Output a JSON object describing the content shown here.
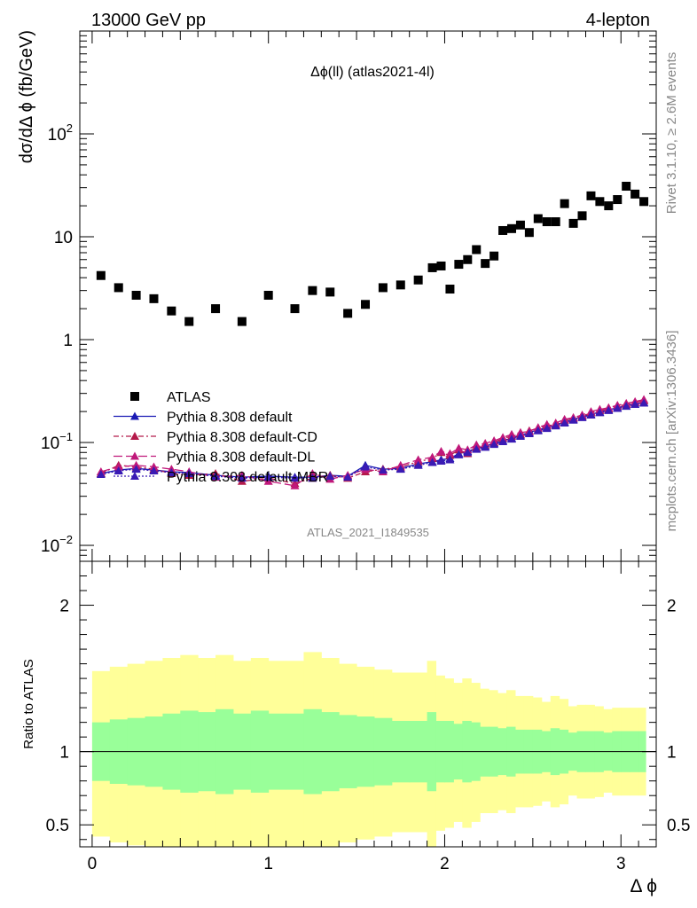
{
  "header": {
    "energy_label": "13000 GeV pp",
    "process_label": "4-lepton"
  },
  "side": {
    "rivet_label": "Rivet 3.1.10, ≥ 2.6M events",
    "mcplots_label": "mcplots.cern.ch [arXiv:1306.3436]"
  },
  "chart_data": [
    {
      "type": "scatter",
      "title": "Δϕ(ll) (atlas2021-4l)",
      "watermark": "ATLAS_2021_I1849535",
      "ylabel": "dσ/dΔ ϕ (fb/GeV)",
      "xlabel": "Δ ϕ",
      "yscale": "log",
      "xlim": [
        -0.07,
        3.2
      ],
      "ylim": [
        0.007,
        1000
      ],
      "x_ticks": [
        "0",
        "1",
        "2",
        "3"
      ],
      "y_ticks": [
        {
          "value": 0.01,
          "label": "10",
          "exp": "−2"
        },
        {
          "value": 0.1,
          "label": "10",
          "exp": "−1"
        },
        {
          "value": 1,
          "label": "1",
          "exp": ""
        },
        {
          "value": 10,
          "label": "10",
          "exp": ""
        },
        {
          "value": 100,
          "label": "10",
          "exp": "2"
        }
      ],
      "legend_position": "center-left",
      "colors": {
        "ATLAS": "#000000",
        "Pythia 8.308 default": "#1a1ab4",
        "Pythia 8.308 default-CD": "#b41a4a",
        "Pythia 8.308 default-DL": "#c0187a",
        "Pythia 8.308 default-MBR": "#3a1ab4"
      },
      "x": [
        0.05,
        0.15,
        0.25,
        0.35,
        0.45,
        0.55,
        0.7,
        0.85,
        1.0,
        1.15,
        1.25,
        1.35,
        1.45,
        1.55,
        1.65,
        1.75,
        1.85,
        1.93,
        1.98,
        2.03,
        2.08,
        2.13,
        2.18,
        2.23,
        2.28,
        2.33,
        2.38,
        2.43,
        2.48,
        2.53,
        2.58,
        2.63,
        2.68,
        2.73,
        2.78,
        2.83,
        2.88,
        2.93,
        2.98,
        3.03,
        3.08,
        3.13
      ],
      "series": [
        {
          "name": "ATLAS",
          "marker": "square",
          "values": [
            4.2,
            3.2,
            2.7,
            2.5,
            1.9,
            1.5,
            2.0,
            1.5,
            2.7,
            2.0,
            3.0,
            2.9,
            1.8,
            2.2,
            3.2,
            3.4,
            3.8,
            5.0,
            5.2,
            3.1,
            5.4,
            6.0,
            7.5,
            5.5,
            6.5,
            11.5,
            12,
            13,
            11,
            15,
            14,
            14,
            21,
            13.5,
            16,
            25,
            22,
            20,
            23,
            31,
            26,
            22
          ]
        },
        {
          "name": "Pythia 8.308 default",
          "marker": "triangle",
          "values": [
            0.05,
            0.054,
            0.056,
            0.054,
            0.052,
            0.051,
            0.048,
            0.046,
            0.047,
            0.046,
            0.046,
            0.048,
            0.047,
            0.06,
            0.055,
            0.056,
            0.062,
            0.065,
            0.068,
            0.07,
            0.078,
            0.082,
            0.088,
            0.092,
            0.098,
            0.105,
            0.11,
            0.118,
            0.125,
            0.133,
            0.14,
            0.148,
            0.158,
            0.168,
            0.178,
            0.188,
            0.198,
            0.208,
            0.218,
            0.228,
            0.238,
            0.245
          ]
        },
        {
          "name": "Pythia 8.308 default-CD",
          "marker": "triangle",
          "values": [
            0.05,
            0.06,
            0.058,
            0.055,
            0.05,
            0.048,
            0.05,
            0.042,
            0.045,
            0.04,
            0.045,
            0.048,
            0.045,
            0.052,
            0.055,
            0.058,
            0.065,
            0.07,
            0.08,
            0.075,
            0.085,
            0.078,
            0.09,
            0.095,
            0.1,
            0.11,
            0.115,
            0.12,
            0.13,
            0.138,
            0.145,
            0.15,
            0.165,
            0.172,
            0.18,
            0.195,
            0.205,
            0.212,
            0.225,
            0.235,
            0.245,
            0.255
          ]
        },
        {
          "name": "Pythia 8.308 default-DL",
          "marker": "triangle",
          "values": [
            0.052,
            0.058,
            0.06,
            0.058,
            0.055,
            0.052,
            0.046,
            0.048,
            0.042,
            0.038,
            0.05,
            0.044,
            0.048,
            0.055,
            0.052,
            0.06,
            0.068,
            0.072,
            0.082,
            0.078,
            0.088,
            0.085,
            0.095,
            0.098,
            0.104,
            0.112,
            0.12,
            0.125,
            0.128,
            0.14,
            0.15,
            0.155,
            0.168,
            0.175,
            0.185,
            0.2,
            0.21,
            0.218,
            0.23,
            0.24,
            0.25,
            0.262
          ]
        },
        {
          "name": "Pythia 8.308 default-MBR",
          "marker": "triangle",
          "values": [
            0.049,
            0.053,
            0.055,
            0.053,
            0.051,
            0.05,
            0.047,
            0.045,
            0.046,
            0.045,
            0.045,
            0.047,
            0.046,
            0.058,
            0.054,
            0.055,
            0.06,
            0.064,
            0.066,
            0.068,
            0.076,
            0.08,
            0.086,
            0.09,
            0.096,
            0.102,
            0.108,
            0.115,
            0.122,
            0.13,
            0.137,
            0.145,
            0.155,
            0.165,
            0.175,
            0.185,
            0.195,
            0.205,
            0.215,
            0.225,
            0.235,
            0.242
          ]
        }
      ]
    },
    {
      "type": "area",
      "ylabel": "Ratio to ATLAS",
      "ylim": [
        0.35,
        2.3
      ],
      "y_ticks": [
        {
          "value": 0.5,
          "label": "0.5"
        },
        {
          "value": 1,
          "label": "1"
        },
        {
          "value": 2,
          "label": "2"
        }
      ],
      "reference_line": 1,
      "colors": {
        "inner_band": "#99ff99",
        "outer_band": "#ffff99"
      },
      "bin_edges": [
        0,
        0.1,
        0.2,
        0.3,
        0.4,
        0.5,
        0.6,
        0.7,
        0.8,
        0.9,
        1.0,
        1.1,
        1.2,
        1.3,
        1.4,
        1.5,
        1.6,
        1.7,
        1.8,
        1.9,
        1.95,
        2.0,
        2.05,
        2.1,
        2.15,
        2.2,
        2.25,
        2.3,
        2.35,
        2.4,
        2.45,
        2.5,
        2.55,
        2.6,
        2.65,
        2.7,
        2.75,
        2.8,
        2.85,
        2.9,
        2.95,
        3.0,
        3.05,
        3.1,
        3.14
      ],
      "inner_band": {
        "lower": [
          0.8,
          0.78,
          0.77,
          0.76,
          0.74,
          0.72,
          0.73,
          0.71,
          0.74,
          0.72,
          0.74,
          0.74,
          0.71,
          0.73,
          0.75,
          0.76,
          0.77,
          0.79,
          0.79,
          0.73,
          0.79,
          0.79,
          0.81,
          0.79,
          0.8,
          0.83,
          0.83,
          0.84,
          0.83,
          0.85,
          0.85,
          0.85,
          0.86,
          0.84,
          0.85,
          0.87,
          0.86,
          0.86,
          0.86,
          0.87,
          0.86,
          0.86,
          0.86,
          0.86
        ],
        "upper": [
          1.2,
          1.22,
          1.23,
          1.24,
          1.26,
          1.28,
          1.27,
          1.29,
          1.26,
          1.28,
          1.26,
          1.26,
          1.29,
          1.27,
          1.25,
          1.24,
          1.23,
          1.21,
          1.21,
          1.27,
          1.21,
          1.21,
          1.19,
          1.21,
          1.2,
          1.17,
          1.17,
          1.16,
          1.17,
          1.15,
          1.15,
          1.15,
          1.14,
          1.16,
          1.15,
          1.13,
          1.14,
          1.14,
          1.14,
          1.13,
          1.14,
          1.14,
          1.14,
          1.14
        ]
      },
      "outer_band": {
        "lower": [
          0.42,
          0.38,
          0.36,
          0.35,
          0.33,
          0.3,
          0.33,
          0.3,
          0.35,
          0.32,
          0.35,
          0.35,
          0.3,
          0.33,
          0.38,
          0.4,
          0.42,
          0.45,
          0.45,
          0.35,
          0.46,
          0.48,
          0.52,
          0.48,
          0.52,
          0.58,
          0.58,
          0.6,
          0.58,
          0.62,
          0.62,
          0.63,
          0.66,
          0.62,
          0.64,
          0.7,
          0.68,
          0.68,
          0.69,
          0.72,
          0.7,
          0.7,
          0.7,
          0.7
        ],
        "upper": [
          1.55,
          1.58,
          1.6,
          1.62,
          1.64,
          1.66,
          1.64,
          1.66,
          1.62,
          1.64,
          1.62,
          1.62,
          1.68,
          1.64,
          1.6,
          1.58,
          1.56,
          1.54,
          1.54,
          1.62,
          1.52,
          1.5,
          1.47,
          1.5,
          1.47,
          1.43,
          1.42,
          1.4,
          1.42,
          1.38,
          1.38,
          1.37,
          1.34,
          1.38,
          1.36,
          1.31,
          1.32,
          1.32,
          1.31,
          1.29,
          1.3,
          1.3,
          1.3,
          1.3
        ]
      }
    }
  ]
}
